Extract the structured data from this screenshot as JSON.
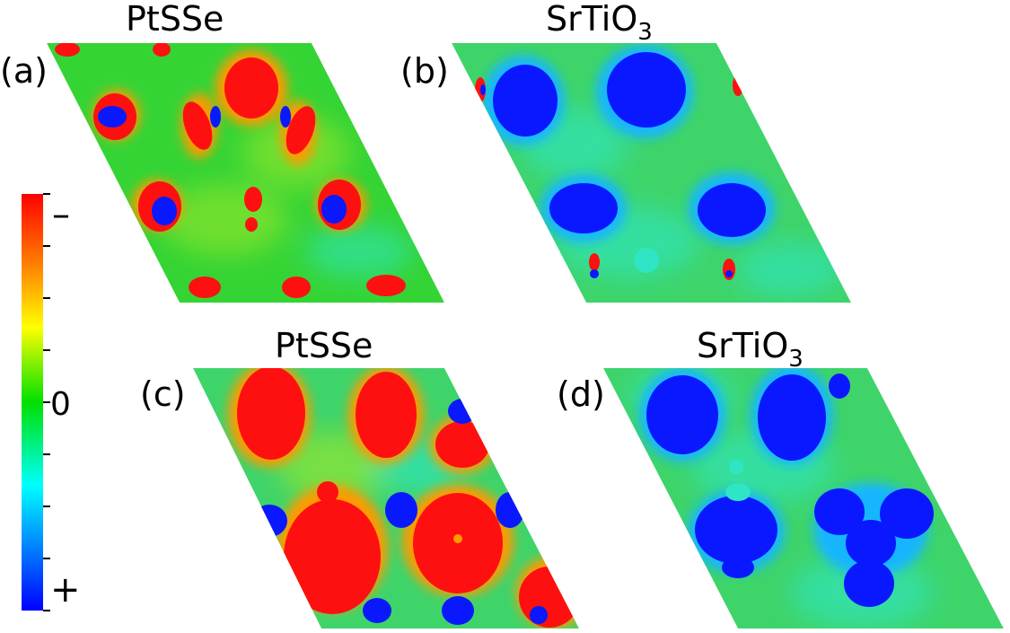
{
  "panels": [
    {
      "letter": "(a)",
      "title": "PtSSe"
    },
    {
      "letter": "(b)",
      "title_main": "SrTiO",
      "title_sub": "3"
    },
    {
      "letter": "(c)",
      "title": "PtSSe"
    },
    {
      "letter": "(d)",
      "title_main": "SrTiO",
      "title_sub": "3"
    }
  ],
  "colorbar": {
    "top_label": "–",
    "mid_label": "0",
    "bottom_label": "+",
    "colors_top_to_bottom": [
      "#ff0000",
      "#ff8000",
      "#ffff00",
      "#00e000",
      "#00ffff",
      "#0080ff",
      "#0000ff"
    ]
  },
  "palette": {
    "neg": "#ff1010",
    "neg_edge": "#ff9a00",
    "pos": "#0a18ff",
    "pos_edge": "#19b6ff",
    "neutral": "#2ed42e",
    "neutral_light": "#8fe62e",
    "cyan": "#2ee6c4"
  }
}
